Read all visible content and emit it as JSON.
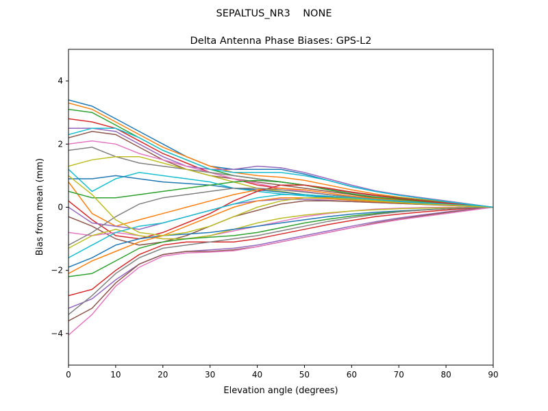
{
  "chart_data": {
    "type": "line",
    "suptitle": "SEPALTUS_NR3    NONE",
    "title": "Delta Antenna Phase Biases: GPS-L2",
    "xlabel": "Elevation angle (degrees)",
    "ylabel": "Bias from mean (mm)",
    "xlim": [
      0,
      90
    ],
    "ylim": [
      -5,
      5
    ],
    "xticks": [
      0,
      10,
      20,
      30,
      40,
      50,
      60,
      70,
      80,
      90
    ],
    "yticks": [
      -4,
      -2,
      0,
      2,
      4
    ],
    "xtick_labels": [
      "0",
      "10",
      "20",
      "30",
      "40",
      "50",
      "60",
      "70",
      "80",
      "90"
    ],
    "ytick_labels": [
      "−4",
      "−2",
      "0",
      "2",
      "4"
    ],
    "grid": false,
    "colors": [
      "#1f77b4",
      "#ff7f0e",
      "#2ca02c",
      "#d62728",
      "#9467bd",
      "#8c564b",
      "#e377c2",
      "#7f7f7f",
      "#bcbd22",
      "#17becf"
    ],
    "x": [
      0,
      5,
      10,
      15,
      20,
      25,
      30,
      35,
      40,
      45,
      50,
      55,
      60,
      65,
      70,
      75,
      80,
      85,
      90
    ],
    "series": [
      {
        "values": [
          3.4,
          3.2,
          2.8,
          2.4,
          2.0,
          1.6,
          1.3,
          1.2,
          1.2,
          1.2,
          1.05,
          0.85,
          0.65,
          0.5,
          0.38,
          0.28,
          0.18,
          0.09,
          0
        ]
      },
      {
        "values": [
          3.3,
          3.1,
          2.7,
          2.3,
          1.9,
          1.6,
          1.3,
          1.1,
          1.0,
          0.95,
          0.85,
          0.7,
          0.55,
          0.42,
          0.32,
          0.24,
          0.16,
          0.08,
          0
        ]
      },
      {
        "values": [
          3.1,
          3.0,
          2.6,
          2.2,
          1.8,
          1.5,
          1.2,
          1.0,
          0.9,
          0.8,
          0.7,
          0.6,
          0.48,
          0.38,
          0.3,
          0.22,
          0.15,
          0.08,
          0
        ]
      },
      {
        "values": [
          2.8,
          2.7,
          2.5,
          2.1,
          1.7,
          1.4,
          1.1,
          0.9,
          0.7,
          0.6,
          0.5,
          0.4,
          0.32,
          0.25,
          0.2,
          0.15,
          0.1,
          0.05,
          0
        ]
      },
      {
        "values": [
          2.5,
          2.5,
          2.4,
          2.0,
          1.6,
          1.3,
          1.2,
          1.2,
          1.3,
          1.25,
          1.1,
          0.9,
          0.7,
          0.52,
          0.4,
          0.3,
          0.2,
          0.1,
          0
        ]
      },
      {
        "values": [
          2.2,
          2.4,
          2.3,
          1.9,
          1.5,
          1.2,
          1.0,
          0.9,
          0.8,
          0.7,
          0.6,
          0.5,
          0.4,
          0.3,
          0.24,
          0.18,
          0.12,
          0.06,
          0
        ]
      },
      {
        "values": [
          2.0,
          2.1,
          2.0,
          1.7,
          1.5,
          1.3,
          1.1,
          0.9,
          0.75,
          0.6,
          0.5,
          0.4,
          0.32,
          0.25,
          0.2,
          0.15,
          0.1,
          0.05,
          0
        ]
      },
      {
        "values": [
          1.8,
          1.9,
          1.6,
          1.4,
          1.3,
          1.2,
          1.1,
          1.0,
          0.9,
          0.8,
          0.7,
          0.58,
          0.46,
          0.36,
          0.28,
          0.2,
          0.14,
          0.07,
          0
        ]
      },
      {
        "values": [
          1.3,
          1.5,
          1.6,
          1.6,
          1.4,
          1.2,
          1.0,
          0.8,
          0.6,
          0.5,
          0.4,
          0.34,
          0.28,
          0.22,
          0.17,
          0.13,
          0.09,
          0.05,
          0
        ]
      },
      {
        "values": [
          1.2,
          0.5,
          0.9,
          1.1,
          1.0,
          0.9,
          0.8,
          0.6,
          0.5,
          0.42,
          0.36,
          0.3,
          0.24,
          0.19,
          0.15,
          0.11,
          0.07,
          0.04,
          0
        ]
      },
      {
        "values": [
          0.9,
          0.9,
          1.0,
          0.9,
          0.8,
          0.75,
          0.7,
          0.6,
          0.55,
          0.48,
          0.4,
          0.32,
          0.26,
          0.2,
          0.16,
          0.12,
          0.08,
          0.04,
          0
        ]
      },
      {
        "values": [
          0.8,
          -0.2,
          -0.6,
          -0.4,
          -0.2,
          0.0,
          0.2,
          0.4,
          0.55,
          0.6,
          0.55,
          0.45,
          0.35,
          0.28,
          0.22,
          0.16,
          0.1,
          0.05,
          0
        ]
      },
      {
        "values": [
          0.5,
          0.3,
          0.3,
          0.4,
          0.5,
          0.6,
          0.7,
          0.8,
          0.85,
          0.8,
          0.7,
          0.55,
          0.42,
          0.32,
          0.25,
          0.18,
          0.12,
          0.06,
          0
        ]
      },
      {
        "values": [
          0.2,
          -0.4,
          -0.9,
          -1.0,
          -0.8,
          -0.5,
          -0.2,
          0.2,
          0.5,
          0.7,
          0.7,
          0.6,
          0.48,
          0.38,
          0.28,
          0.2,
          0.13,
          0.06,
          0
        ]
      },
      {
        "values": [
          0.0,
          -0.5,
          -0.6,
          -0.7,
          -0.5,
          -0.3,
          -0.1,
          0.1,
          0.2,
          0.25,
          0.25,
          0.22,
          0.18,
          0.15,
          0.12,
          0.09,
          0.06,
          0.03,
          0
        ]
      },
      {
        "values": [
          -0.3,
          -0.6,
          -1.0,
          -1.2,
          -1.1,
          -0.9,
          -0.6,
          -0.3,
          -0.1,
          0.1,
          0.2,
          0.2,
          0.18,
          0.15,
          0.12,
          0.09,
          0.06,
          0.03,
          0
        ]
      },
      {
        "values": [
          -0.8,
          -0.9,
          -0.8,
          -0.9,
          -1.0,
          -1.0,
          -0.9,
          -0.75,
          -0.6,
          -0.45,
          -0.3,
          -0.2,
          -0.12,
          -0.06,
          -0.03,
          -0.01,
          0,
          0,
          0
        ]
      },
      {
        "values": [
          -1.2,
          -0.8,
          -0.3,
          0.1,
          0.3,
          0.4,
          0.5,
          0.6,
          0.6,
          0.55,
          0.48,
          0.4,
          0.32,
          0.25,
          0.2,
          0.15,
          0.1,
          0.05,
          0
        ]
      },
      {
        "values": [
          -1.3,
          -0.9,
          -0.7,
          -0.9,
          -1.0,
          -1.0,
          -0.9,
          -0.7,
          -0.5,
          -0.35,
          -0.25,
          -0.18,
          -0.12,
          -0.08,
          -0.05,
          -0.03,
          -0.02,
          -0.01,
          0
        ]
      },
      {
        "values": [
          -1.6,
          -1.2,
          -0.8,
          -0.6,
          -0.5,
          -0.3,
          -0.1,
          0.1,
          0.3,
          0.4,
          0.4,
          0.35,
          0.3,
          0.24,
          0.19,
          0.14,
          0.09,
          0.05,
          0
        ]
      },
      {
        "values": [
          -1.9,
          -1.6,
          -1.2,
          -1.0,
          -0.9,
          -0.85,
          -0.8,
          -0.7,
          -0.6,
          -0.5,
          -0.4,
          -0.3,
          -0.22,
          -0.16,
          -0.12,
          -0.08,
          -0.05,
          -0.02,
          0
        ]
      },
      {
        "values": [
          -2.1,
          -1.7,
          -1.4,
          -1.1,
          -0.9,
          -0.6,
          -0.3,
          0.0,
          0.2,
          0.3,
          0.3,
          0.27,
          0.22,
          0.18,
          0.14,
          0.1,
          0.07,
          0.03,
          0
        ]
      },
      {
        "values": [
          -2.2,
          -2.1,
          -1.7,
          -1.3,
          -1.1,
          -1.0,
          -0.95,
          -0.9,
          -0.8,
          -0.65,
          -0.5,
          -0.38,
          -0.28,
          -0.2,
          -0.14,
          -0.09,
          -0.05,
          -0.02,
          0
        ]
      },
      {
        "values": [
          -2.8,
          -2.6,
          -2.0,
          -1.5,
          -1.2,
          -1.1,
          -1.1,
          -1.1,
          -1.0,
          -0.85,
          -0.7,
          -0.55,
          -0.42,
          -0.3,
          -0.22,
          -0.15,
          -0.09,
          -0.04,
          0
        ]
      },
      {
        "values": [
          -3.2,
          -2.9,
          -2.3,
          -1.8,
          -1.5,
          -1.4,
          -1.35,
          -1.3,
          -1.2,
          -1.05,
          -0.9,
          -0.75,
          -0.6,
          -0.46,
          -0.34,
          -0.24,
          -0.15,
          -0.07,
          0
        ]
      },
      {
        "values": [
          -3.6,
          -3.2,
          -2.4,
          -1.8,
          -1.5,
          -1.4,
          -1.4,
          -1.35,
          -1.25,
          -1.1,
          -0.95,
          -0.8,
          -0.65,
          -0.5,
          -0.38,
          -0.27,
          -0.17,
          -0.08,
          0
        ]
      },
      {
        "values": [
          -4.05,
          -3.4,
          -2.5,
          -1.9,
          -1.55,
          -1.45,
          -1.42,
          -1.38,
          -1.25,
          -1.1,
          -0.95,
          -0.8,
          -0.65,
          -0.52,
          -0.4,
          -0.3,
          -0.2,
          -0.1,
          0
        ]
      },
      {
        "values": [
          -3.4,
          -2.8,
          -2.1,
          -1.6,
          -1.3,
          -1.2,
          -1.1,
          -1.0,
          -0.9,
          -0.75,
          -0.6,
          -0.45,
          -0.33,
          -0.23,
          -0.15,
          -0.09,
          -0.05,
          -0.02,
          0
        ]
      },
      {
        "values": [
          1.0,
          0.4,
          -0.4,
          -0.8,
          -0.9,
          -0.8,
          -0.6,
          -0.3,
          0.0,
          0.2,
          0.3,
          0.3,
          0.26,
          0.2,
          0.15,
          0.1,
          0.07,
          0.03,
          0
        ]
      },
      {
        "values": [
          2.3,
          2.5,
          2.5,
          2.2,
          1.8,
          1.5,
          1.2,
          1.1,
          1.1,
          1.1,
          1.0,
          0.85,
          0.66,
          0.5,
          0.38,
          0.28,
          0.18,
          0.09,
          0
        ]
      }
    ]
  }
}
